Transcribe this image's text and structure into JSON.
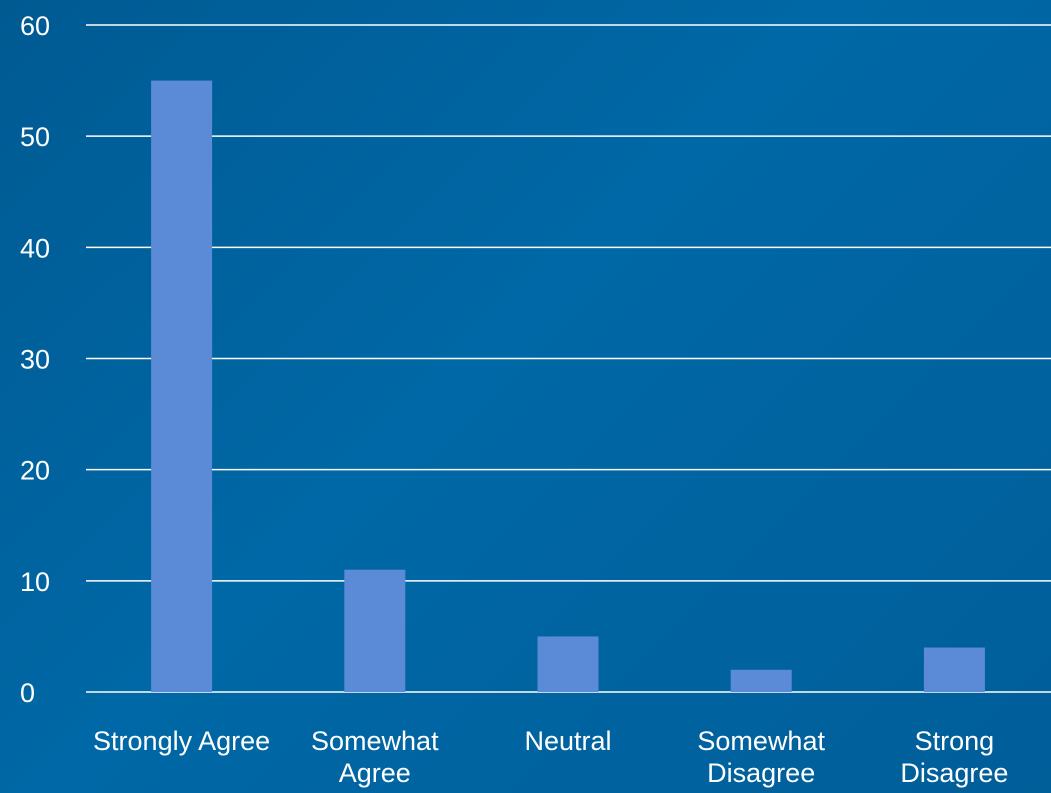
{
  "chart_data": {
    "type": "bar",
    "categories": [
      "Strongly Agree",
      "Somewhat Agree",
      "Neutral",
      "Somewhat Disagree",
      "Strong Disagree"
    ],
    "values": [
      55,
      11,
      5,
      2,
      4
    ],
    "title": "",
    "xlabel": "",
    "ylabel": "",
    "ylim": [
      0,
      60
    ],
    "yticks": [
      "0",
      "10",
      "20",
      "30",
      "40",
      "50",
      "60"
    ],
    "grid": true,
    "legend": "none",
    "bar_color": "#5b8ad6",
    "grid_color": "#ffffff",
    "text_color": "#ffffff",
    "background_color": "#0064a0"
  }
}
